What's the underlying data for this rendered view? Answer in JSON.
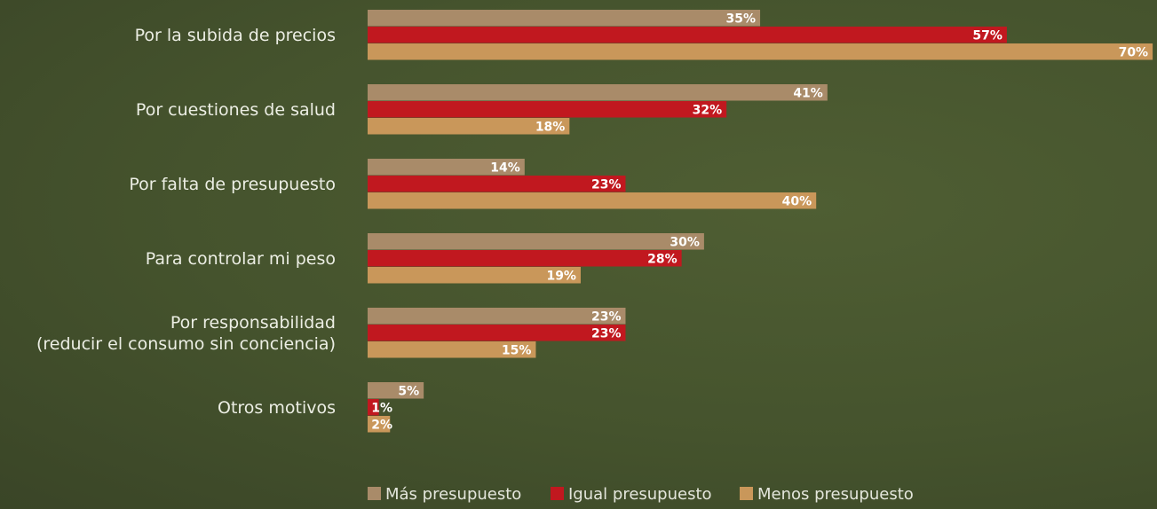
{
  "chart_data": {
    "type": "hbar",
    "categories": [
      "Por la subida de precios",
      "Por cuestiones de salud",
      "Por falta de presupuesto",
      "Para controlar mi peso",
      "Por responsabilidad\n(reducir el consumo sin conciencia)",
      "Otros motivos"
    ],
    "series": [
      {
        "name": "Más presupuesto",
        "color": "#a98b69",
        "values": [
          35,
          41,
          14,
          30,
          23,
          5
        ],
        "value_labels": [
          "35%",
          "41%",
          "14%",
          "30%",
          "23%",
          "5%"
        ]
      },
      {
        "name": "Igual presupuesto",
        "color": "#c1181f",
        "values": [
          57,
          32,
          23,
          28,
          23,
          1
        ],
        "value_labels": [
          "57%",
          "32%",
          "23%",
          "28%",
          "23%",
          "1%"
        ]
      },
      {
        "name": "Menos presupuesto",
        "color": "#c9975a",
        "values": [
          70,
          18,
          40,
          19,
          15,
          2
        ],
        "value_labels": [
          "70%",
          "18%",
          "40%",
          "19%",
          "15%",
          "2%"
        ]
      }
    ],
    "legend": "bottom"
  }
}
